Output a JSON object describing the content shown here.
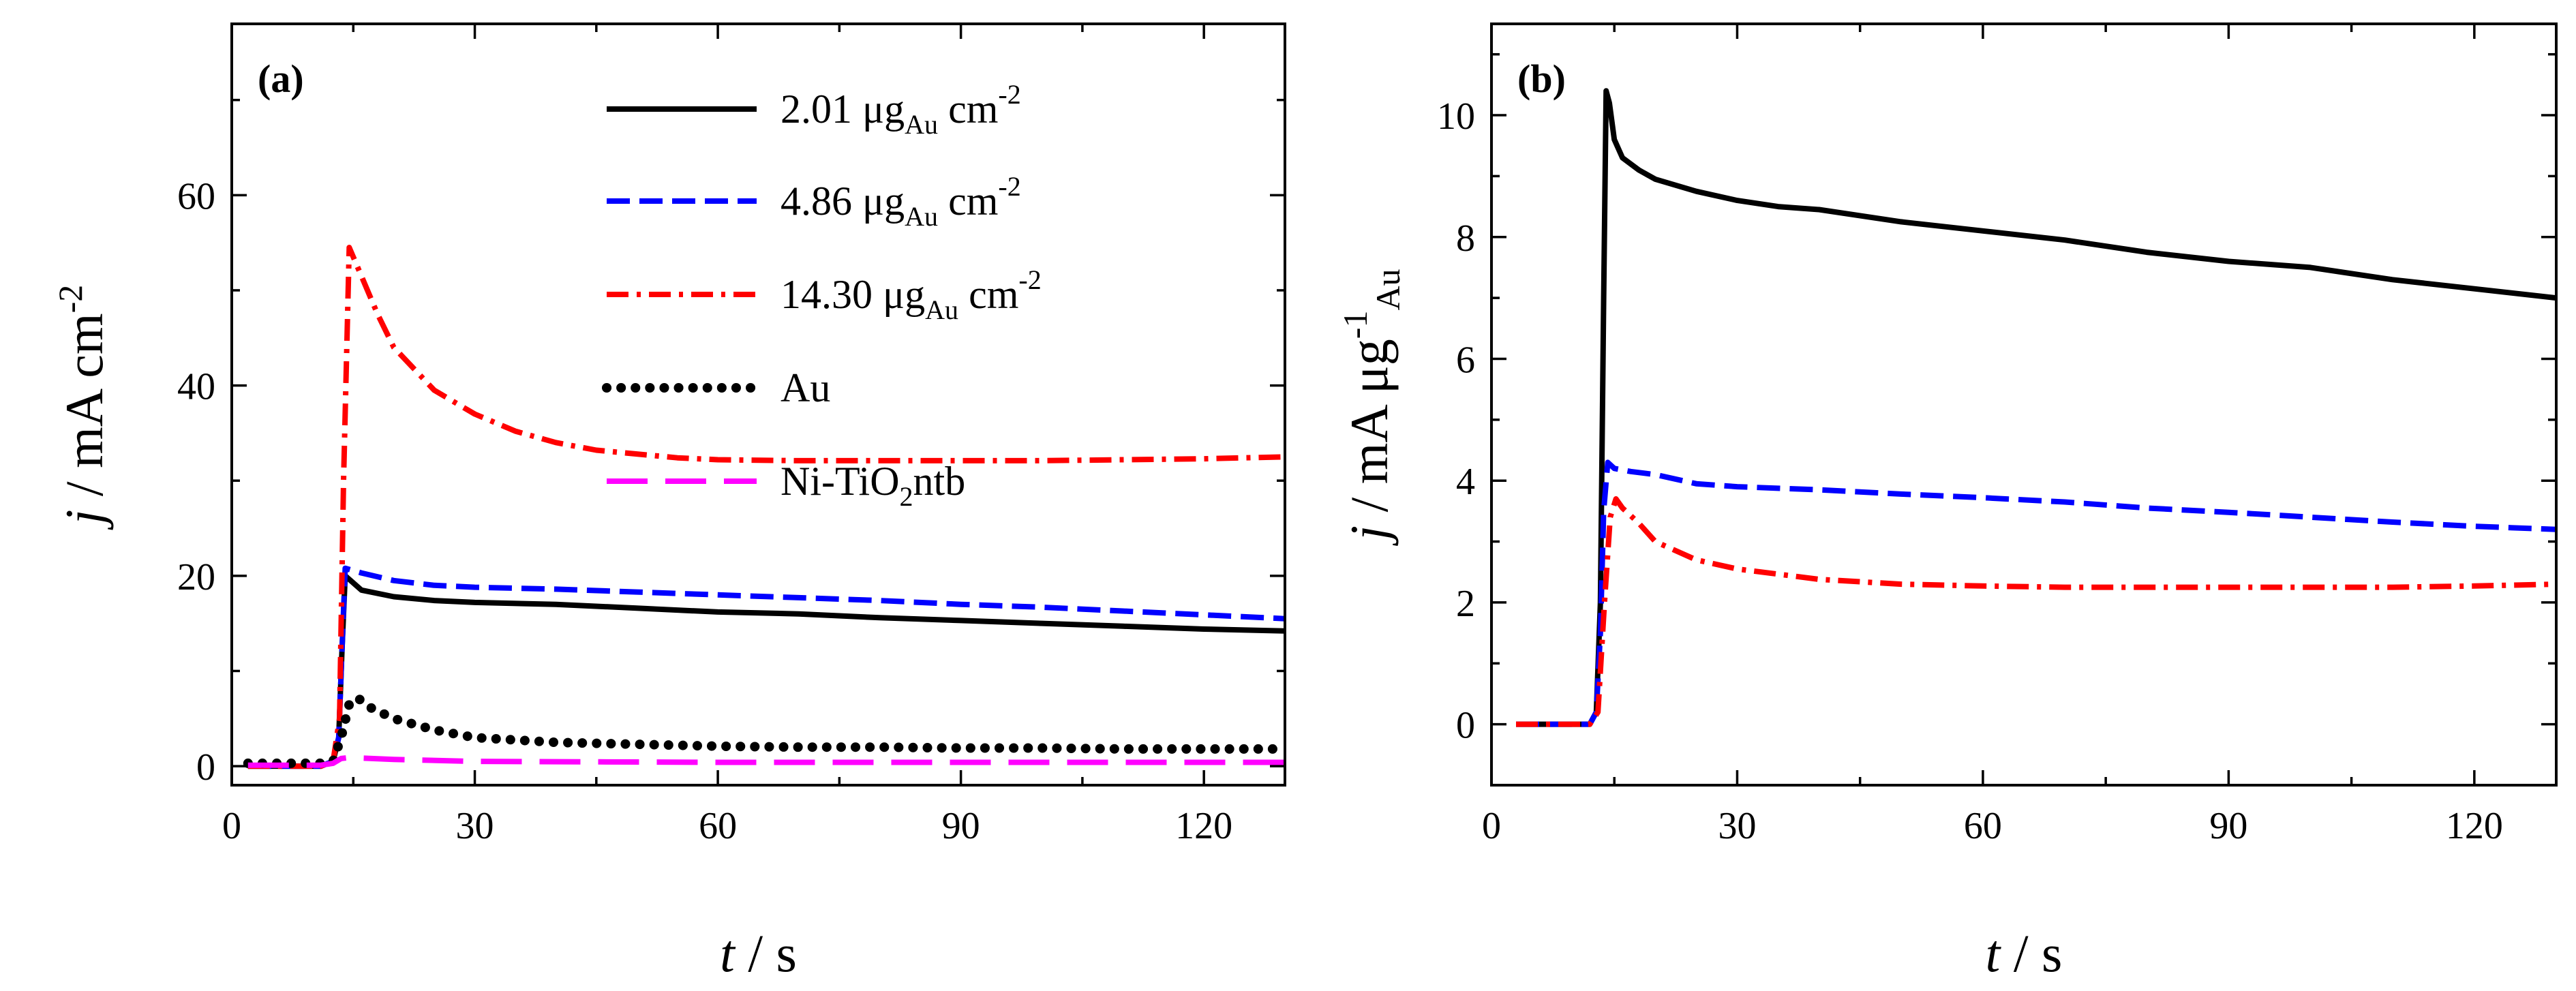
{
  "chart_data": [
    {
      "type": "line",
      "panel_label": "(a)",
      "xlabel_var": "t",
      "xlabel_unit": " / s",
      "ylabel_var": "j",
      "ylabel_unit": " / mA cm",
      "ylabel_sup": "-2",
      "xlim": [
        0,
        130
      ],
      "ylim": [
        -2,
        78
      ],
      "xticks": [
        0,
        30,
        60,
        90,
        120
      ],
      "yticks": [
        0,
        20,
        40,
        60
      ],
      "series": [
        {
          "name": "2.01 μg_Au cm^-2",
          "color": "#000000",
          "style": "solid",
          "x": [
            2,
            11,
            12.5,
            13.2,
            13.6,
            14,
            16,
            20,
            25,
            30,
            40,
            50,
            60,
            70,
            80,
            90,
            100,
            110,
            120,
            130
          ],
          "y": [
            0,
            0,
            0.5,
            3,
            12,
            20,
            18.5,
            17.8,
            17.4,
            17.2,
            17.0,
            16.6,
            16.2,
            16.0,
            15.6,
            15.3,
            15.0,
            14.7,
            14.4,
            14.2
          ]
        },
        {
          "name": "4.86 μg_Au cm^-2",
          "color": "#0000ff",
          "style": "dash",
          "x": [
            2,
            11,
            12.5,
            13.2,
            13.6,
            14,
            16,
            20,
            25,
            30,
            40,
            50,
            60,
            70,
            80,
            90,
            100,
            110,
            120,
            130
          ],
          "y": [
            0,
            0,
            0.5,
            3,
            12,
            20.8,
            20.3,
            19.5,
            19.0,
            18.8,
            18.6,
            18.3,
            18.0,
            17.7,
            17.4,
            17.0,
            16.7,
            16.3,
            15.9,
            15.5
          ]
        },
        {
          "name": "14.30 μg_Au cm^-2",
          "color": "#ff0000",
          "style": "dashdot",
          "x": [
            2,
            11,
            12.5,
            13.3,
            13.8,
            14.5,
            16,
            18,
            20,
            25,
            30,
            35,
            40,
            45,
            50,
            55,
            60,
            70,
            80,
            90,
            100,
            110,
            120,
            130
          ],
          "y": [
            0,
            0,
            0.5,
            5,
            30,
            54.5,
            51.5,
            47.5,
            44,
            39.5,
            37,
            35.2,
            34,
            33.2,
            32.8,
            32.4,
            32.2,
            32.1,
            32.1,
            32.1,
            32.1,
            32.2,
            32.3,
            32.5
          ]
        },
        {
          "name": "Au",
          "color": "#000000",
          "style": "dot",
          "x": [
            2,
            11,
            12.5,
            13.5,
            14.5,
            15.5,
            17,
            20,
            25,
            30,
            40,
            50,
            60,
            70,
            80,
            90,
            100,
            110,
            120,
            130
          ],
          "y": [
            0.3,
            0.3,
            0.5,
            3,
            6.5,
            7.2,
            6.2,
            5.0,
            3.8,
            3.0,
            2.5,
            2.3,
            2.1,
            2.0,
            2.0,
            1.9,
            1.9,
            1.8,
            1.8,
            1.8
          ]
        },
        {
          "name": "Ni-TiO2ntb",
          "color": "#ff00ff",
          "style": "longdash",
          "x": [
            2,
            11,
            12.5,
            13.5,
            14.5,
            20,
            30,
            60,
            90,
            130
          ],
          "y": [
            0.1,
            0.1,
            0.3,
            0.8,
            0.9,
            0.7,
            0.5,
            0.4,
            0.4,
            0.4
          ]
        }
      ],
      "legend": [
        {
          "num": "2.01 μg",
          "sub": "Au",
          "unit": " cm",
          "sup": "-2"
        },
        {
          "num": "4.86 μg",
          "sub": "Au",
          "unit": " cm",
          "sup": "-2"
        },
        {
          "num": "14.30 μg",
          "sub": "Au",
          "unit": " cm",
          "sup": "-2"
        },
        {
          "num": "Au",
          "sub": "",
          "unit": "",
          "sup": ""
        },
        {
          "num": "Ni-TiO",
          "sub": "2",
          "unit": "ntb",
          "sup": ""
        }
      ],
      "legend_position": "top-right"
    },
    {
      "type": "line",
      "panel_label": "(b)",
      "xlabel_var": "t",
      "xlabel_unit": " / s",
      "ylabel_var": "j",
      "ylabel_unit": " / mA μg",
      "ylabel_sup": "-1",
      "ylabel_sub": "Au",
      "xlim": [
        0,
        130
      ],
      "ylim": [
        -1,
        11.5
      ],
      "xticks": [
        0,
        30,
        60,
        90,
        120
      ],
      "yticks": [
        0,
        2,
        4,
        6,
        8,
        10
      ],
      "series": [
        {
          "name": "2.01 μg_Au cm^-2",
          "color": "#000000",
          "style": "solid",
          "x": [
            3,
            12,
            12.8,
            13.3,
            13.7,
            14.0,
            14.4,
            15,
            16,
            18,
            20,
            25,
            30,
            35,
            40,
            50,
            60,
            70,
            80,
            90,
            100,
            110,
            120,
            130
          ],
          "y": [
            0,
            0,
            0.2,
            2,
            7,
            10.4,
            10.2,
            9.6,
            9.3,
            9.1,
            8.95,
            8.75,
            8.6,
            8.5,
            8.45,
            8.25,
            8.1,
            7.95,
            7.75,
            7.6,
            7.5,
            7.3,
            7.15,
            7.0
          ]
        },
        {
          "name": "4.86 μg_Au cm^-2",
          "color": "#0000ff",
          "style": "dash",
          "x": [
            3,
            12,
            12.8,
            13.3,
            13.7,
            14.2,
            15,
            17,
            20,
            25,
            30,
            40,
            50,
            60,
            70,
            80,
            90,
            100,
            110,
            120,
            130
          ],
          "y": [
            0,
            0,
            0.2,
            1.5,
            3.5,
            4.3,
            4.2,
            4.15,
            4.1,
            3.95,
            3.9,
            3.85,
            3.78,
            3.72,
            3.65,
            3.55,
            3.48,
            3.4,
            3.32,
            3.25,
            3.2
          ]
        },
        {
          "name": "14.30 μg_Au cm^-2",
          "color": "#ff0000",
          "style": "dashdot",
          "x": [
            3,
            12,
            13,
            13.8,
            14.5,
            15.2,
            16,
            18,
            20,
            25,
            30,
            40,
            50,
            60,
            70,
            80,
            90,
            100,
            110,
            120,
            130
          ],
          "y": [
            0,
            0,
            0.2,
            2,
            3.4,
            3.7,
            3.55,
            3.3,
            3.0,
            2.7,
            2.55,
            2.38,
            2.3,
            2.27,
            2.25,
            2.25,
            2.25,
            2.25,
            2.25,
            2.27,
            2.3
          ]
        }
      ]
    }
  ]
}
